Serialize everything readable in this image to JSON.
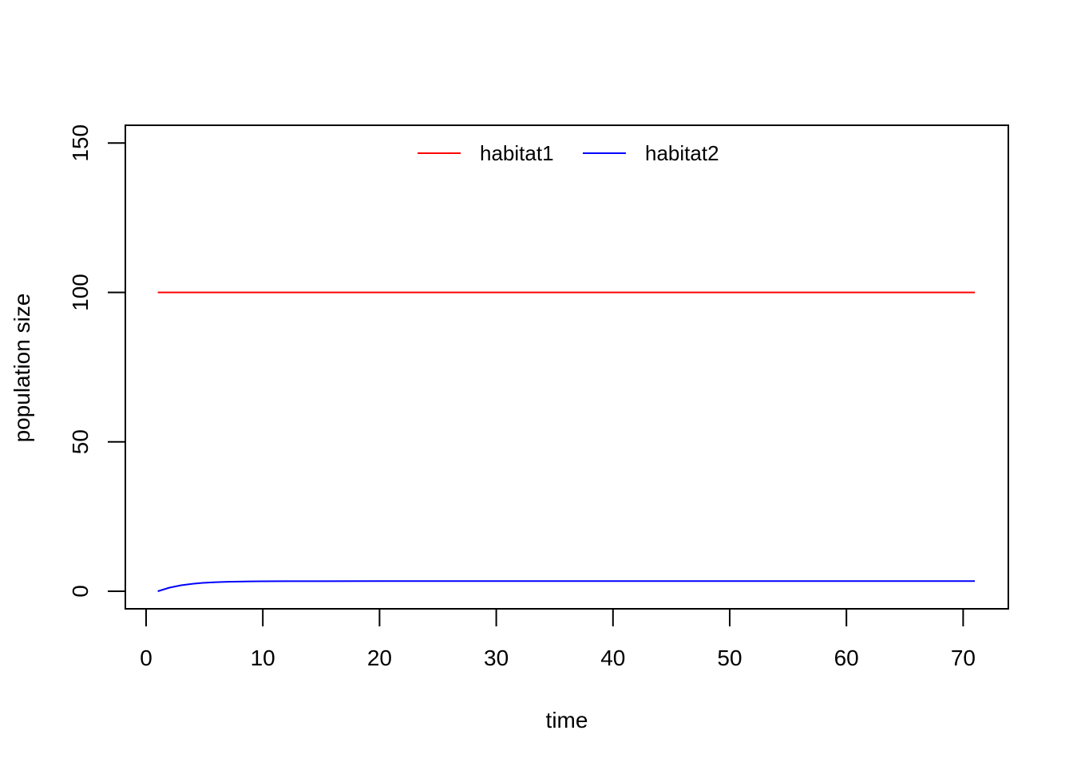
{
  "chart_data": {
    "type": "line",
    "title": "",
    "xlabel": "time",
    "ylabel": "population size",
    "xlim": [
      0,
      72
    ],
    "ylim": [
      0,
      150
    ],
    "x_ticks": [
      0,
      10,
      20,
      30,
      40,
      50,
      60,
      70
    ],
    "y_ticks": [
      0,
      50,
      100,
      150
    ],
    "grid": false,
    "legend_position": "top",
    "series": [
      {
        "name": "habitat1",
        "color": "#ff0000",
        "x": [
          1,
          71
        ],
        "values": [
          100,
          100
        ]
      },
      {
        "name": "habitat2",
        "color": "#0000ff",
        "x": [
          1,
          2,
          3,
          4,
          5,
          6,
          7,
          8,
          9,
          10,
          12,
          15,
          20,
          30,
          40,
          50,
          60,
          71
        ],
        "values": [
          0,
          1.2,
          2.0,
          2.5,
          2.85,
          3.05,
          3.18,
          3.25,
          3.3,
          3.33,
          3.36,
          3.38,
          3.39,
          3.4,
          3.4,
          3.4,
          3.4,
          3.4
        ]
      }
    ]
  }
}
